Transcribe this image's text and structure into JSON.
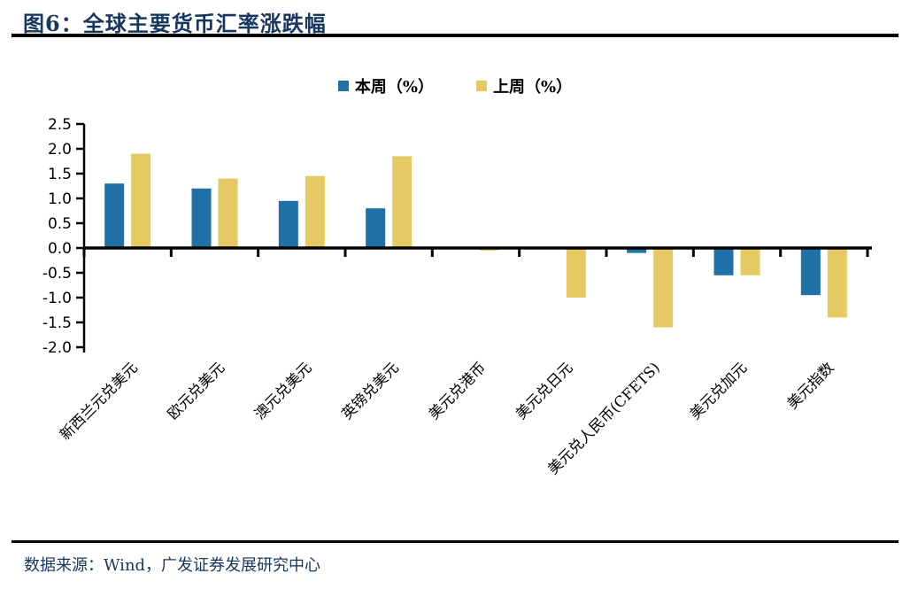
{
  "header": {
    "title": "图6：全球主要货币汇率涨跌幅"
  },
  "footer": {
    "text": "数据来源：Wind，广发证券发展研究中心"
  },
  "chart_data": {
    "type": "bar",
    "title": "全球主要货币汇率涨跌幅",
    "categories": [
      "新西兰元兑美元",
      "欧元兑美元",
      "澳元兑美元",
      "英镑兑美元",
      "美元兑港币",
      "美元兑日元",
      "美元兑人民币(CFETS)",
      "美元兑加元",
      "美元指数"
    ],
    "series": [
      {
        "name": "本周（%）",
        "color": "#2071A7",
        "values": [
          1.3,
          1.2,
          0.95,
          0.8,
          0.0,
          0.0,
          -0.1,
          -0.55,
          -0.95
        ]
      },
      {
        "name": "上周（%）",
        "color": "#E5C963",
        "values": [
          1.9,
          1.4,
          1.45,
          1.85,
          -0.05,
          -1.0,
          -1.6,
          -0.55,
          -1.4
        ]
      }
    ],
    "ylabel": "",
    "xlabel": "",
    "ylim": [
      -2.0,
      2.5
    ],
    "ytick_step": 0.5,
    "yticks": [
      "2.5",
      "2.0",
      "1.5",
      "1.0",
      "0.5",
      "0.0",
      "-0.5",
      "-1.0",
      "-1.5",
      "-2.0"
    ],
    "grid": false,
    "legend_position": "top-center",
    "axis_color": "#000000",
    "label_rotation_deg": 45
  }
}
